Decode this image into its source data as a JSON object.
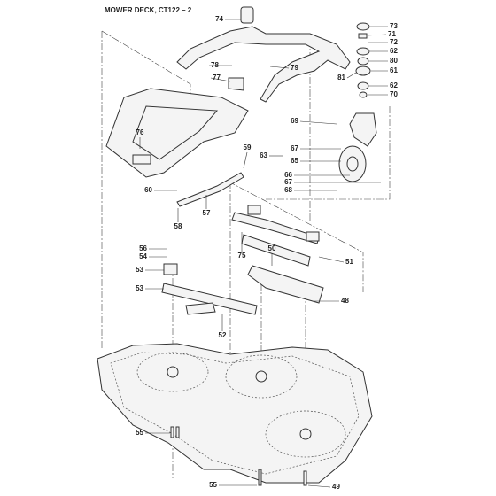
{
  "header": {
    "title": "MOWER DECK, CT122 – 2"
  },
  "callouts": [
    "74",
    "73",
    "71",
    "72",
    "62",
    "80",
    "61",
    "81",
    "62",
    "70",
    "78",
    "79",
    "77",
    "69",
    "76",
    "59",
    "67",
    "63",
    "65",
    "66",
    "67",
    "68",
    "60",
    "57",
    "58",
    "56",
    "54",
    "75",
    "50",
    "51",
    "53",
    "53",
    "48",
    "52",
    "55",
    "55",
    "49"
  ]
}
